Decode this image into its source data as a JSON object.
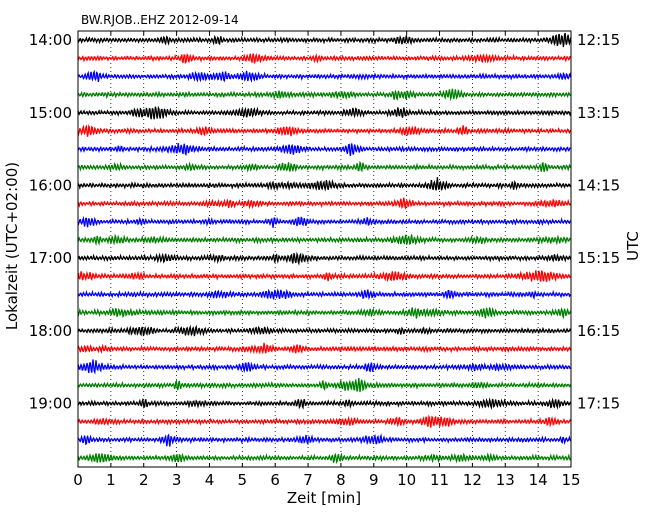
{
  "chart_data": {
    "type": "line",
    "title": "BW.RJOB..EHZ 2012-09-14",
    "xlabel": "Zeit  [min]",
    "ylabel_left": "Lokalzeit (UTC+02:00)",
    "ylabel_right": "UTC",
    "xlim": [
      0,
      15
    ],
    "x_ticks": [
      "0",
      "1",
      "2",
      "3",
      "4",
      "5",
      "6",
      "7",
      "8",
      "9",
      "10",
      "11",
      "12",
      "13",
      "14",
      "15"
    ],
    "x_gridlines": "dotted, every 1 min",
    "minutes_per_row": 15,
    "row_count": 24,
    "row_colors": [
      "#000000",
      "#ff0000",
      "#0000ff",
      "#008000"
    ],
    "left_time_labels": [
      "14:00",
      "15:00",
      "16:00",
      "17:00",
      "18:00",
      "19:00"
    ],
    "right_time_labels": [
      "12:15",
      "13:15",
      "14:15",
      "15:15",
      "16:15",
      "17:15"
    ],
    "label_every_rows": 4
  }
}
